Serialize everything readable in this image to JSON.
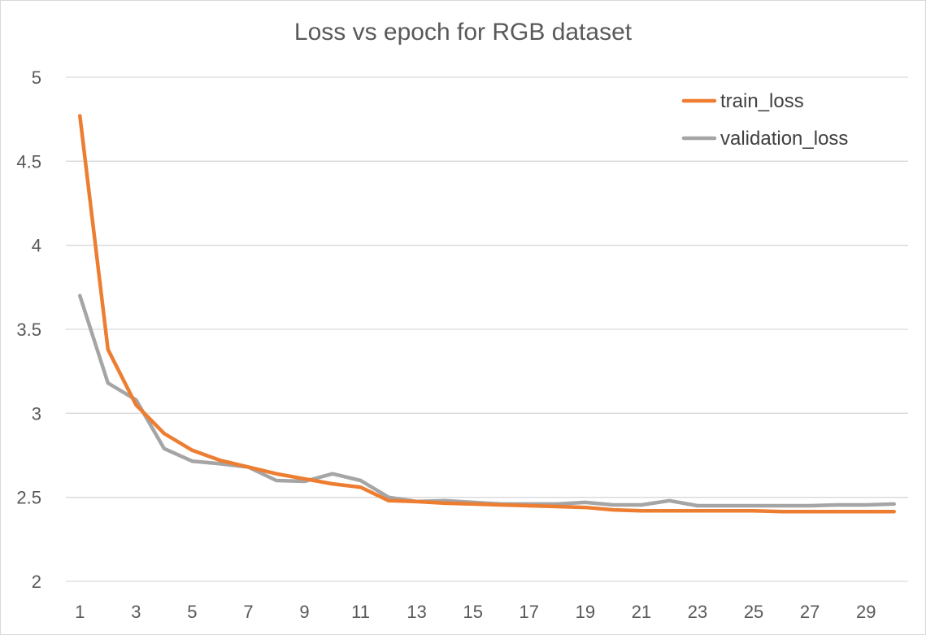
{
  "chart_data": {
    "type": "line",
    "title": "Loss vs epoch for RGB dataset",
    "xlabel": "",
    "ylabel": "",
    "x": [
      1,
      2,
      3,
      4,
      5,
      6,
      7,
      8,
      9,
      10,
      11,
      12,
      13,
      14,
      15,
      16,
      17,
      18,
      19,
      20,
      21,
      22,
      23,
      24,
      25,
      26,
      27,
      28,
      29,
      30
    ],
    "x_tick_labels": [
      "1",
      "3",
      "5",
      "7",
      "9",
      "11",
      "13",
      "15",
      "17",
      "19",
      "21",
      "23",
      "25",
      "27",
      "29"
    ],
    "ylim": [
      2,
      5
    ],
    "y_ticks": [
      2,
      2.5,
      3,
      3.5,
      4,
      4.5,
      5
    ],
    "y_tick_labels": [
      "2",
      "2.5",
      "3",
      "3.5",
      "4",
      "4.5",
      "5"
    ],
    "grid": "horizontal",
    "legend_position": "top-right",
    "series": [
      {
        "name": "train_loss",
        "color": "#ed7d31",
        "values": [
          4.77,
          3.38,
          3.05,
          2.88,
          2.78,
          2.72,
          2.68,
          2.64,
          2.61,
          2.58,
          2.56,
          2.48,
          2.475,
          2.465,
          2.46,
          2.455,
          2.45,
          2.445,
          2.44,
          2.425,
          2.42,
          2.42,
          2.42,
          2.42,
          2.42,
          2.415,
          2.415,
          2.415,
          2.415,
          2.415
        ]
      },
      {
        "name": "validation_loss",
        "color": "#a5a5a5",
        "values": [
          3.7,
          3.18,
          3.08,
          2.79,
          2.715,
          2.7,
          2.68,
          2.6,
          2.595,
          2.64,
          2.6,
          2.5,
          2.475,
          2.48,
          2.47,
          2.46,
          2.46,
          2.46,
          2.47,
          2.455,
          2.455,
          2.48,
          2.45,
          2.45,
          2.45,
          2.45,
          2.45,
          2.455,
          2.455,
          2.46
        ]
      }
    ]
  }
}
